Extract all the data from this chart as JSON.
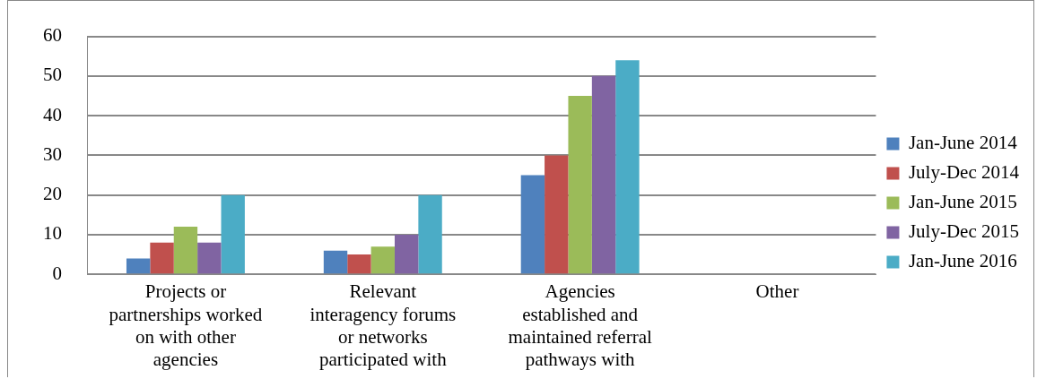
{
  "chart_data": {
    "type": "bar",
    "categories": [
      "Projects or partnerships worked on with other agencies",
      "Relevant interagency forums or networks participated with",
      "Agencies established and maintained referral pathways with",
      "Other"
    ],
    "series": [
      {
        "name": "Jan-June 2014",
        "color": "#4f81bd",
        "values": [
          4,
          6,
          25,
          null
        ]
      },
      {
        "name": "July-Dec 2014",
        "color": "#c0504d",
        "values": [
          8,
          5,
          30,
          null
        ]
      },
      {
        "name": "Jan-June 2015",
        "color": "#9bbb59",
        "values": [
          12,
          7,
          45,
          null
        ]
      },
      {
        "name": "July-Dec 2015",
        "color": "#8064a2",
        "values": [
          8,
          10,
          50,
          null
        ]
      },
      {
        "name": "Jan-June 2016",
        "color": "#4bacc6",
        "values": [
          20,
          20,
          54,
          null
        ]
      }
    ],
    "ylim": [
      0,
      60
    ],
    "yticks": [
      0,
      10,
      20,
      30,
      40,
      50,
      60
    ],
    "grid": "y",
    "legend": "right"
  }
}
